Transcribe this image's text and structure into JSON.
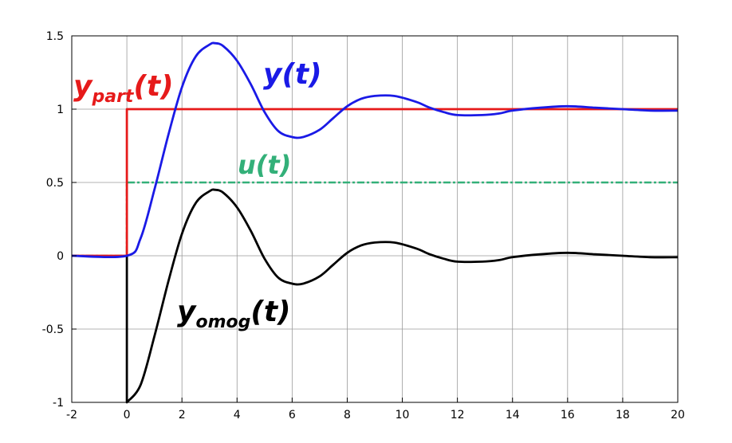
{
  "chart_data": {
    "type": "line",
    "title": "",
    "xlabel": "",
    "ylabel": "",
    "xlim": [
      -2,
      20
    ],
    "ylim": [
      -1,
      1.5
    ],
    "grid": true,
    "xticks": [
      "-2",
      "0",
      "2",
      "4",
      "6",
      "8",
      "10",
      "12",
      "14",
      "16",
      "18",
      "20"
    ],
    "yticks": [
      "-1",
      "-0.5",
      "0",
      "0.5",
      "1",
      "1.5"
    ],
    "series": [
      {
        "name": "y(t)",
        "label": {
          "base": "y",
          "sub": "",
          "arg": "(t)"
        },
        "color": "#1a1ae6",
        "style": "solid",
        "x": [
          -2,
          0,
          0.5,
          1,
          1.5,
          2,
          2.5,
          3,
          3.2,
          3.5,
          4,
          4.5,
          5,
          5.5,
          6,
          6.4,
          7,
          7.5,
          8,
          8.5,
          9,
          9.7,
          10.5,
          11,
          11.5,
          12,
          12.9,
          13.5,
          14,
          15,
          16,
          17,
          18,
          19,
          20
        ],
        "y": [
          0,
          0,
          0.12,
          0.45,
          0.82,
          1.15,
          1.36,
          1.44,
          1.45,
          1.43,
          1.33,
          1.17,
          0.98,
          0.85,
          0.81,
          0.81,
          0.86,
          0.94,
          1.02,
          1.07,
          1.09,
          1.09,
          1.05,
          1.01,
          0.98,
          0.96,
          0.96,
          0.97,
          0.99,
          1.01,
          1.02,
          1.01,
          1.0,
          0.99,
          0.99
        ]
      },
      {
        "name": "y_part(t)",
        "label": {
          "base": "y",
          "sub": "part",
          "arg": "(t)"
        },
        "color": "#e61a1a",
        "style": "solid",
        "x": [
          -2,
          0,
          0,
          20
        ],
        "y": [
          0,
          0,
          1,
          1
        ]
      },
      {
        "name": "u(t)",
        "label": {
          "base": "u",
          "sub": "",
          "arg": "(t)"
        },
        "color": "#33b079",
        "style": "dash-dot",
        "x": [
          -2,
          0,
          0,
          20
        ],
        "y": [
          0,
          0,
          0.5,
          0.5
        ]
      },
      {
        "name": "y_omog(t)",
        "label": {
          "base": "y",
          "sub": "omog",
          "arg": "(t)"
        },
        "color": "#000000",
        "style": "solid",
        "x": [
          0,
          0,
          0.5,
          1,
          1.5,
          2,
          2.5,
          3,
          3.2,
          3.5,
          4,
          4.5,
          5,
          5.5,
          6,
          6.4,
          7,
          7.5,
          8,
          8.5,
          9,
          9.7,
          10.5,
          11,
          11.5,
          12,
          12.9,
          13.5,
          14,
          15,
          16,
          17,
          18,
          19,
          20
        ],
        "y": [
          0,
          -1,
          -0.88,
          -0.55,
          -0.18,
          0.15,
          0.36,
          0.44,
          0.45,
          0.43,
          0.33,
          0.17,
          -0.02,
          -0.15,
          -0.19,
          -0.19,
          -0.14,
          -0.06,
          0.02,
          0.07,
          0.09,
          0.09,
          0.05,
          0.01,
          -0.02,
          -0.04,
          -0.04,
          -0.03,
          -0.01,
          0.01,
          0.02,
          0.01,
          0.0,
          -0.01,
          -0.01
        ]
      }
    ]
  }
}
